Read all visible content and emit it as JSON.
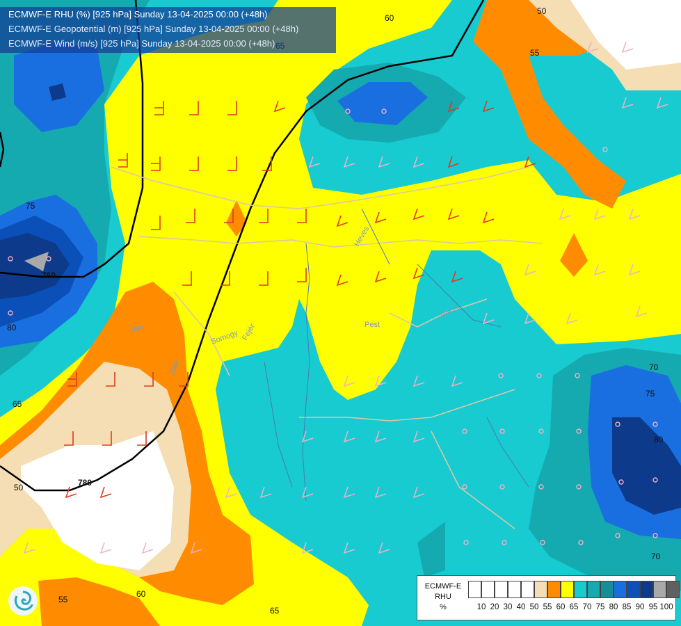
{
  "header": {
    "line1": "ECMWF-E RHU (%) [925 hPa] Sunday 13-04-2025 00:00 (+48h)",
    "line2": "ECMWF-E Geopotential (m) [925 hPa] Sunday 13-04-2025 00:00 (+48h)",
    "line3": "ECMWF-E Wind (m/s) [925 hPa] Sunday 13-04-2025 00:00 (+48h)"
  },
  "colors": {
    "c40": "#ffffff",
    "c50": "#f5deb3",
    "c55": "#ff8c00",
    "c60": "#ffff00",
    "c65": "#17cbd1",
    "c70": "#15a9b0",
    "c75": "#1a6fe0",
    "c80": "#0a50b8",
    "c85": "#0d3a8a",
    "c90": "#a9a9a9"
  },
  "contour_labels": [
    "60",
    "50",
    "55",
    "75",
    "760",
    "80",
    "65",
    "780",
    "50",
    "55",
    "60",
    "65",
    "70",
    "75",
    "80",
    "70",
    "65"
  ],
  "region_labels": [
    "Heves",
    "Pest",
    "Békés",
    "Fejér",
    "Vas",
    "Somogy",
    "Zala"
  ],
  "legend": {
    "title_line1": "ECMWF-E",
    "title_line2": "RHU",
    "title_line3": "%",
    "colors": [
      "#ffffff",
      "#ffffff",
      "#ffffff",
      "#ffffff",
      "#ffffff",
      "#f5deb3",
      "#ff8c00",
      "#ffff00",
      "#17cbd1",
      "#15a9b0",
      "#148f97",
      "#1a6fe0",
      "#0a50b8",
      "#0d3a8a",
      "#a9a9a9",
      "#606060"
    ],
    "labels": [
      "10",
      "20",
      "30",
      "40",
      "50",
      "55",
      "60",
      "65",
      "70",
      "75",
      "80",
      "85",
      "90",
      "95",
      "100"
    ]
  }
}
